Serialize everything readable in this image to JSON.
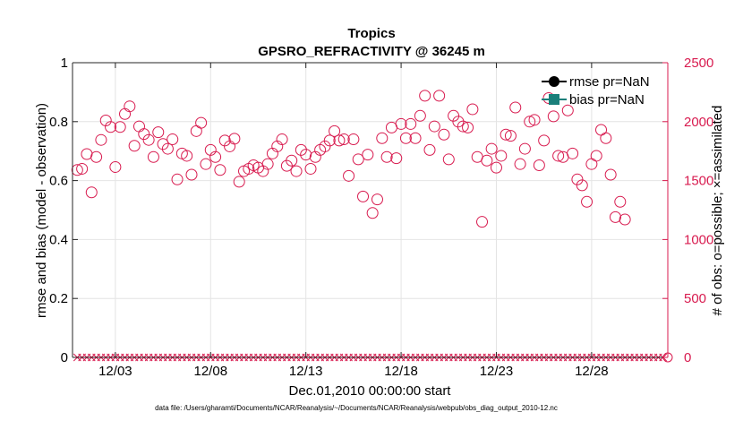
{
  "chart_data": {
    "type": "scatter",
    "title": "Tropics",
    "subtitle": "GPSRO_REFRACTIVITY @ 36245 m",
    "xlabel": "Dec.01,2010 00:00:00 start",
    "ylabel_left": "rmse and bias (model - observation)",
    "ylabel_right": "# of obs: o=possible; ×=assimilated",
    "footnote": "data file: /Users/gharamti/Documents/NCAR/Reanalysis/~/Documents/NCAR/Reanalysis/webpub/obs_diag_output_2010-12.nc",
    "xlim": [
      0.75,
      32.0
    ],
    "ylim_left": [
      0,
      1
    ],
    "ylim_right": [
      0,
      2500
    ],
    "x_ticks": [
      3,
      8,
      13,
      18,
      23,
      28
    ],
    "x_tick_labels": [
      "12/03",
      "12/08",
      "12/13",
      "12/18",
      "12/23",
      "12/28"
    ],
    "y_left_ticks": [
      0,
      0.2,
      0.4,
      0.6,
      0.8,
      1
    ],
    "y_left_tick_labels": [
      "0",
      "0.2",
      "0.4",
      "0.6",
      "0.8",
      "1"
    ],
    "y_right_ticks": [
      0,
      500,
      1000,
      1500,
      2000,
      2500
    ],
    "y_right_tick_labels": [
      "0",
      "500",
      "1000",
      "1500",
      "2000",
      "2500"
    ],
    "grid": true,
    "legend_position": "top-right",
    "legend": [
      {
        "label": "rmse pr=NaN",
        "color": "#000000",
        "marker": "circle"
      },
      {
        "label": "bias pr=NaN",
        "color": "#1a7f7a",
        "marker": "square"
      }
    ],
    "colors": {
      "possible": "#d81b4f",
      "assimilated": "#d81b4f",
      "axis_right": "#d81b4f",
      "grid": "#e4e4e4"
    },
    "series": [
      {
        "name": "obs possible",
        "marker": "circle",
        "axis": "right",
        "values": [
          1590,
          1600,
          1725,
          1400,
          1700,
          1845,
          2010,
          1955,
          1615,
          1955,
          2065,
          2130,
          1795,
          1960,
          1895,
          1845,
          1700,
          1910,
          1810,
          1770,
          1850,
          1510,
          1730,
          1710,
          1550,
          1920,
          1990,
          1640,
          1760,
          1700,
          1590,
          1840,
          1790,
          1855,
          1490,
          1580,
          1600,
          1630,
          1610,
          1580,
          1640,
          1730,
          1790,
          1850,
          1625,
          1670,
          1580,
          1760,
          1720,
          1600,
          1700,
          1760,
          1790,
          1840,
          1920,
          1840,
          1850,
          1540,
          1850,
          1680,
          1365,
          1720,
          1225,
          1340,
          1860,
          1700,
          1950,
          1690,
          1980,
          1860,
          1980,
          1860,
          2050,
          2220,
          1760,
          1960,
          2220,
          1890,
          1680,
          2050,
          2000,
          1960,
          1950,
          2105,
          1700,
          1150,
          1670,
          1770,
          1610,
          1710,
          1890,
          1880,
          2120,
          1640,
          1770,
          2000,
          2015,
          1630,
          1840,
          2200,
          2045,
          1710,
          1700,
          2095,
          1730,
          1510,
          1460,
          1320,
          1640,
          1710,
          1930,
          1860,
          1550,
          1190,
          1320,
          1170
        ],
        "x_start": 1.0,
        "x_step": 0.25
      },
      {
        "name": "obs assimilated",
        "marker": "x",
        "axis": "right",
        "value": 0,
        "x_start": 1.0,
        "x_step": 0.25,
        "count": 124
      }
    ]
  }
}
